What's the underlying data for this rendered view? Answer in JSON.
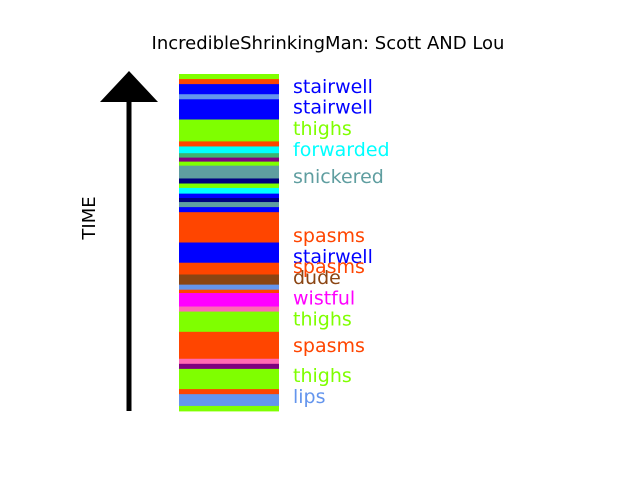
{
  "chart_data": {
    "type": "bar",
    "title": "IncredibleShrinkingMan: Scott AND Lou",
    "ylabel": "TIME",
    "segments": [
      {
        "color": "#FF4500"
      },
      {
        "color": "#0000FF"
      },
      {
        "color": "#7FFF00"
      },
      {
        "color": "#00FFFF"
      },
      {
        "color": "#5F9EA0"
      }
    ],
    "labels": [
      {
        "text": "stairwell",
        "color": "#0000FF",
        "t": 0.965
      },
      {
        "text": "stairwell",
        "color": "#0000FF",
        "t": 0.903
      },
      {
        "text": "thighs",
        "color": "#7FFF00",
        "t": 0.84
      },
      {
        "text": "forwarded",
        "color": "#00FFFF",
        "t": 0.778
      },
      {
        "text": "snickered",
        "color": "#5F9EA0",
        "t": 0.698
      },
      {
        "text": "spasms",
        "color": "#FF4500",
        "t": 0.522
      },
      {
        "text": "stairwell",
        "color": "#0000FF",
        "t": 0.46
      },
      {
        "text": "spasms",
        "color": "#FF4500",
        "t": 0.43
      },
      {
        "text": "dude",
        "color": "#8B4513",
        "t": 0.397
      },
      {
        "text": "wistful",
        "color": "#FF00FF",
        "t": 0.337
      },
      {
        "text": "thighs",
        "color": "#7FFF00",
        "t": 0.275
      },
      {
        "text": "spasms",
        "color": "#FF4500",
        "t": 0.196
      },
      {
        "text": "thighs",
        "color": "#7FFF00",
        "t": 0.107
      },
      {
        "text": "lips",
        "color": "#6495ED",
        "t": 0.044
      }
    ],
    "stripes": [
      {
        "color": "#7FFF00",
        "t0": 0.985,
        "t1": 1.0
      },
      {
        "color": "#FF4500",
        "t0": 0.97,
        "t1": 0.985
      },
      {
        "color": "#0000FF",
        "t0": 0.94,
        "t1": 0.97
      },
      {
        "color": "#6495ED",
        "t0": 0.925,
        "t1": 0.94
      },
      {
        "color": "#0000FF",
        "t0": 0.865,
        "t1": 0.925
      },
      {
        "color": "#7FFF00",
        "t0": 0.8,
        "t1": 0.865
      },
      {
        "color": "#FF4500",
        "t0": 0.785,
        "t1": 0.8
      },
      {
        "color": "#00FFFF",
        "t0": 0.765,
        "t1": 0.785
      },
      {
        "color": "#3CB371",
        "t0": 0.752,
        "t1": 0.765
      },
      {
        "color": "#800080",
        "t0": 0.74,
        "t1": 0.752
      },
      {
        "color": "#7FFF00",
        "t0": 0.728,
        "t1": 0.74
      },
      {
        "color": "#5F9EA0",
        "t0": 0.69,
        "t1": 0.728
      },
      {
        "color": "#000080",
        "t0": 0.675,
        "t1": 0.69
      },
      {
        "color": "#7FFF00",
        "t0": 0.662,
        "t1": 0.675
      },
      {
        "color": "#00FFFF",
        "t0": 0.645,
        "t1": 0.662
      },
      {
        "color": "#0000FF",
        "t0": 0.632,
        "t1": 0.645
      },
      {
        "color": "#000080",
        "t0": 0.62,
        "t1": 0.632
      },
      {
        "color": "#5F9EA0",
        "t0": 0.605,
        "t1": 0.62
      },
      {
        "color": "#0000FF",
        "t0": 0.59,
        "t1": 0.605
      },
      {
        "color": "#FF4500",
        "t0": 0.5,
        "t1": 0.59
      },
      {
        "color": "#0000FF",
        "t0": 0.44,
        "t1": 0.5
      },
      {
        "color": "#FF4500",
        "t0": 0.405,
        "t1": 0.44
      },
      {
        "color": "#8B4513",
        "t0": 0.375,
        "t1": 0.405
      },
      {
        "color": "#6495ED",
        "t0": 0.36,
        "t1": 0.375
      },
      {
        "color": "#FF4500",
        "t0": 0.35,
        "t1": 0.36
      },
      {
        "color": "#FF00FF",
        "t0": 0.31,
        "t1": 0.35
      },
      {
        "color": "#FF69B4",
        "t0": 0.295,
        "t1": 0.31
      },
      {
        "color": "#7FFF00",
        "t0": 0.235,
        "t1": 0.295
      },
      {
        "color": "#FF4500",
        "t0": 0.155,
        "t1": 0.235
      },
      {
        "color": "#FF69B4",
        "t0": 0.14,
        "t1": 0.155
      },
      {
        "color": "#800080",
        "t0": 0.125,
        "t1": 0.14
      },
      {
        "color": "#7FFF00",
        "t0": 0.065,
        "t1": 0.125
      },
      {
        "color": "#FF4500",
        "t0": 0.05,
        "t1": 0.065
      },
      {
        "color": "#6495ED",
        "t0": 0.015,
        "t1": 0.05
      },
      {
        "color": "#7FFF00",
        "t0": 0.0,
        "t1": 0.015
      }
    ]
  }
}
